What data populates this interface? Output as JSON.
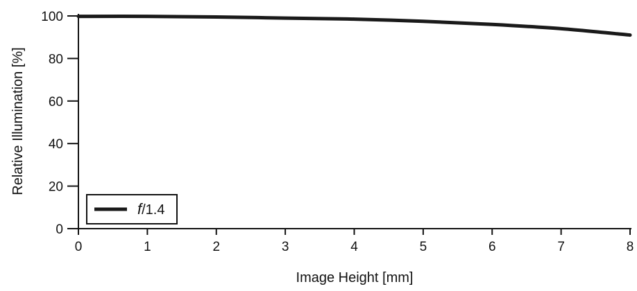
{
  "chart_data": {
    "type": "line",
    "xlabel": "Image Height [mm]",
    "ylabel": "Relative Illumination [%]",
    "xlim": [
      0,
      8
    ],
    "ylim": [
      0,
      100
    ],
    "x_ticks": [
      "0",
      "1",
      "2",
      "3",
      "4",
      "5",
      "6",
      "7",
      "8"
    ],
    "y_ticks": [
      "0",
      "20",
      "40",
      "60",
      "80",
      "100"
    ],
    "grid": false,
    "legend_position": "bottom-left",
    "line_color": "#1a1a1a",
    "series": [
      {
        "name": "f/1.4",
        "name_italic_part": "f",
        "name_rest": "/1.4",
        "x": [
          0,
          1,
          2,
          3,
          4,
          5,
          6,
          7,
          8
        ],
        "y": [
          99.8,
          99.8,
          99.5,
          99.0,
          98.5,
          97.5,
          96.0,
          94.0,
          91.0
        ]
      }
    ]
  }
}
